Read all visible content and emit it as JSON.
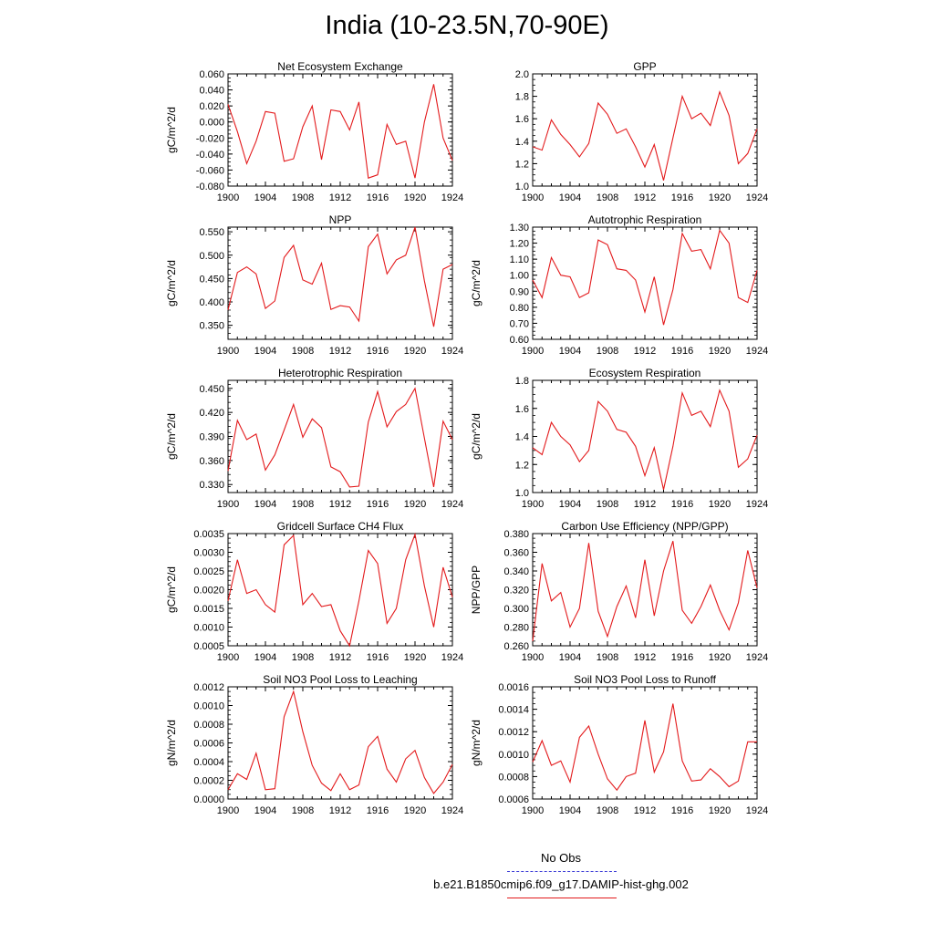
{
  "title": "India (10-23.5N,70-90E)",
  "colors": {
    "series": "#e31a1c",
    "obs": "#3b3bd6",
    "frame": "#000000"
  },
  "legend": [
    {
      "label": "No Obs",
      "style": "dashed",
      "color": "#3b3bd6"
    },
    {
      "label": "b.e21.B1850cmip6.f09_g17.DAMIP-hist-ghg.002",
      "style": "solid",
      "color": "#e31a1c"
    }
  ],
  "chart_data": [
    {
      "type": "line",
      "title": "Net Ecosystem Exchange",
      "ylabel": "gC/m^2/d",
      "xlim": [
        1900,
        1924
      ],
      "ylim": [
        -0.08,
        0.06
      ],
      "xticks": [
        "1900",
        "1904",
        "1908",
        "1912",
        "1916",
        "1920",
        "1924"
      ],
      "yticks": [
        "0.060",
        "0.040",
        "0.020",
        "0.000",
        "-0.020",
        "-0.040",
        "-0.060",
        "-0.080"
      ],
      "x": [
        1900,
        1901,
        1902,
        1903,
        1904,
        1905,
        1906,
        1907,
        1908,
        1909,
        1910,
        1911,
        1912,
        1913,
        1914,
        1915,
        1916,
        1917,
        1918,
        1919,
        1920,
        1921,
        1922,
        1923,
        1924
      ],
      "series": [
        {
          "values": [
            0.022,
            -0.012,
            -0.052,
            -0.024,
            0.013,
            0.011,
            -0.049,
            -0.046,
            -0.006,
            0.02,
            -0.047,
            0.015,
            0.013,
            -0.01,
            0.025,
            -0.07,
            -0.066,
            -0.003,
            -0.028,
            -0.024,
            -0.07,
            0.0,
            0.047,
            -0.02,
            -0.048
          ]
        }
      ]
    },
    {
      "type": "line",
      "title": "GPP",
      "ylabel": "",
      "xlim": [
        1900,
        1924
      ],
      "ylim": [
        1.0,
        2.0
      ],
      "xticks": [
        "1900",
        "1904",
        "1908",
        "1912",
        "1916",
        "1920",
        "1924"
      ],
      "yticks": [
        "2.0",
        "1.8",
        "1.6",
        "1.4",
        "1.2",
        "1.0"
      ],
      "x": [
        1900,
        1901,
        1902,
        1903,
        1904,
        1905,
        1906,
        1907,
        1908,
        1909,
        1910,
        1911,
        1912,
        1913,
        1914,
        1915,
        1916,
        1917,
        1918,
        1919,
        1920,
        1921,
        1922,
        1923,
        1924
      ],
      "series": [
        {
          "values": [
            1.35,
            1.32,
            1.59,
            1.46,
            1.37,
            1.26,
            1.38,
            1.74,
            1.64,
            1.47,
            1.51,
            1.35,
            1.17,
            1.37,
            1.05,
            1.43,
            1.8,
            1.6,
            1.65,
            1.54,
            1.84,
            1.63,
            1.2,
            1.29,
            1.51
          ]
        }
      ]
    },
    {
      "type": "line",
      "title": "NPP",
      "ylabel": "gC/m^2/d",
      "xlim": [
        1900,
        1924
      ],
      "ylim": [
        0.32,
        0.56
      ],
      "xticks": [
        "1900",
        "1904",
        "1908",
        "1912",
        "1916",
        "1920",
        "1924"
      ],
      "yticks": [
        "0.550",
        "0.500",
        "0.450",
        "0.400",
        "0.350"
      ],
      "x": [
        1900,
        1901,
        1902,
        1903,
        1904,
        1905,
        1906,
        1907,
        1908,
        1909,
        1910,
        1911,
        1912,
        1913,
        1914,
        1915,
        1916,
        1917,
        1918,
        1919,
        1920,
        1921,
        1922,
        1923,
        1924
      ],
      "series": [
        {
          "values": [
            0.383,
            0.463,
            0.475,
            0.46,
            0.386,
            0.402,
            0.495,
            0.521,
            0.447,
            0.438,
            0.483,
            0.384,
            0.392,
            0.389,
            0.359,
            0.518,
            0.545,
            0.46,
            0.49,
            0.5,
            0.56,
            0.445,
            0.347,
            0.47,
            0.48
          ]
        }
      ]
    },
    {
      "type": "line",
      "title": "Autotrophic Respiration",
      "ylabel": "gC/m^2/d",
      "xlim": [
        1900,
        1924
      ],
      "ylim": [
        0.6,
        1.3
      ],
      "xticks": [
        "1900",
        "1904",
        "1908",
        "1912",
        "1916",
        "1920",
        "1924"
      ],
      "yticks": [
        "1.30",
        "1.20",
        "1.10",
        "1.00",
        "0.90",
        "0.80",
        "0.70",
        "0.60"
      ],
      "x": [
        1900,
        1901,
        1902,
        1903,
        1904,
        1905,
        1906,
        1907,
        1908,
        1909,
        1910,
        1911,
        1912,
        1913,
        1914,
        1915,
        1916,
        1917,
        1918,
        1919,
        1920,
        1921,
        1922,
        1923,
        1924
      ],
      "series": [
        {
          "values": [
            0.97,
            0.86,
            1.11,
            1.0,
            0.99,
            0.86,
            0.89,
            1.22,
            1.19,
            1.04,
            1.03,
            0.97,
            0.77,
            0.99,
            0.69,
            0.91,
            1.26,
            1.15,
            1.16,
            1.04,
            1.28,
            1.2,
            0.86,
            0.83,
            1.03
          ]
        }
      ]
    },
    {
      "type": "line",
      "title": "Heterotrophic Respiration",
      "ylabel": "gC/m^2/d",
      "xlim": [
        1900,
        1924
      ],
      "ylim": [
        0.32,
        0.46
      ],
      "xticks": [
        "1900",
        "1904",
        "1908",
        "1912",
        "1916",
        "1920",
        "1924"
      ],
      "yticks": [
        "0.450",
        "0.420",
        "0.390",
        "0.360",
        "0.330"
      ],
      "x": [
        1900,
        1901,
        1902,
        1903,
        1904,
        1905,
        1906,
        1907,
        1908,
        1909,
        1910,
        1911,
        1912,
        1913,
        1914,
        1915,
        1916,
        1917,
        1918,
        1919,
        1920,
        1921,
        1922,
        1923,
        1924
      ],
      "series": [
        {
          "values": [
            0.347,
            0.41,
            0.386,
            0.393,
            0.348,
            0.367,
            0.398,
            0.43,
            0.389,
            0.412,
            0.401,
            0.352,
            0.346,
            0.327,
            0.328,
            0.408,
            0.446,
            0.402,
            0.421,
            0.43,
            0.45,
            0.388,
            0.327,
            0.409,
            0.386
          ]
        }
      ]
    },
    {
      "type": "line",
      "title": "Ecosystem Respiration",
      "ylabel": "gC/m^2/d",
      "xlim": [
        1900,
        1924
      ],
      "ylim": [
        1.0,
        1.8
      ],
      "xticks": [
        "1900",
        "1904",
        "1908",
        "1912",
        "1916",
        "1920",
        "1924"
      ],
      "yticks": [
        "1.8",
        "1.6",
        "1.4",
        "1.2",
        "1.0"
      ],
      "x": [
        1900,
        1901,
        1902,
        1903,
        1904,
        1905,
        1906,
        1907,
        1908,
        1909,
        1910,
        1911,
        1912,
        1913,
        1914,
        1915,
        1916,
        1917,
        1918,
        1919,
        1920,
        1921,
        1922,
        1923,
        1924
      ],
      "series": [
        {
          "values": [
            1.32,
            1.27,
            1.5,
            1.4,
            1.34,
            1.22,
            1.3,
            1.65,
            1.58,
            1.45,
            1.43,
            1.33,
            1.12,
            1.32,
            1.02,
            1.33,
            1.71,
            1.55,
            1.58,
            1.47,
            1.73,
            1.58,
            1.18,
            1.24,
            1.41
          ]
        }
      ]
    },
    {
      "type": "line",
      "title": "Gridcell Surface CH4 Flux",
      "ylabel": "gC/m^2/d",
      "xlim": [
        1900,
        1924
      ],
      "ylim": [
        0.0005,
        0.0035
      ],
      "xticks": [
        "1900",
        "1904",
        "1908",
        "1912",
        "1916",
        "1920",
        "1924"
      ],
      "yticks": [
        "0.0035",
        "0.0030",
        "0.0025",
        "0.0020",
        "0.0015",
        "0.0010",
        "0.0005"
      ],
      "x": [
        1900,
        1901,
        1902,
        1903,
        1904,
        1905,
        1906,
        1907,
        1908,
        1909,
        1910,
        1911,
        1912,
        1913,
        1914,
        1915,
        1916,
        1917,
        1918,
        1919,
        1920,
        1921,
        1922,
        1923,
        1924
      ],
      "series": [
        {
          "values": [
            0.0017,
            0.0028,
            0.0019,
            0.002,
            0.0016,
            0.0014,
            0.0032,
            0.00345,
            0.0016,
            0.0019,
            0.00155,
            0.0016,
            0.0009,
            0.0005,
            0.0017,
            0.00305,
            0.0027,
            0.0011,
            0.0015,
            0.0028,
            0.00348,
            0.0021,
            0.001,
            0.0026,
            0.0018
          ]
        }
      ]
    },
    {
      "type": "line",
      "title": "Carbon Use Efficiency (NPP/GPP)",
      "ylabel": "NPP/GPP",
      "xlim": [
        1900,
        1924
      ],
      "ylim": [
        0.26,
        0.38
      ],
      "xticks": [
        "1900",
        "1904",
        "1908",
        "1912",
        "1916",
        "1920",
        "1924"
      ],
      "yticks": [
        "0.380",
        "0.360",
        "0.340",
        "0.320",
        "0.300",
        "0.280",
        "0.260"
      ],
      "x": [
        1900,
        1901,
        1902,
        1903,
        1904,
        1905,
        1906,
        1907,
        1908,
        1909,
        1910,
        1911,
        1912,
        1913,
        1914,
        1915,
        1916,
        1917,
        1918,
        1919,
        1920,
        1921,
        1922,
        1923,
        1924
      ],
      "series": [
        {
          "values": [
            0.265,
            0.348,
            0.308,
            0.317,
            0.28,
            0.3,
            0.37,
            0.297,
            0.27,
            0.302,
            0.324,
            0.29,
            0.352,
            0.292,
            0.34,
            0.372,
            0.298,
            0.284,
            0.302,
            0.325,
            0.298,
            0.277,
            0.306,
            0.362,
            0.322
          ]
        }
      ]
    },
    {
      "type": "line",
      "title": "Soil NO3 Pool Loss to Leaching",
      "ylabel": "gN/m^2/d",
      "xlim": [
        1900,
        1924
      ],
      "ylim": [
        0.0,
        0.0012
      ],
      "xticks": [
        "1900",
        "1904",
        "1908",
        "1912",
        "1916",
        "1920",
        "1924"
      ],
      "yticks": [
        "0.0012",
        "0.0010",
        "0.0008",
        "0.0006",
        "0.0004",
        "0.0002",
        "0.0000"
      ],
      "x": [
        1900,
        1901,
        1902,
        1903,
        1904,
        1905,
        1906,
        1907,
        1908,
        1909,
        1910,
        1911,
        1912,
        1913,
        1914,
        1915,
        1916,
        1917,
        1918,
        1919,
        1920,
        1921,
        1922,
        1923,
        1924
      ],
      "series": [
        {
          "values": [
            0.0001,
            0.00027,
            0.00021,
            0.00049,
            0.0001,
            0.00011,
            0.00088,
            0.00115,
            0.00072,
            0.00036,
            0.00017,
            9e-05,
            0.00027,
            0.0001,
            0.00015,
            0.00056,
            0.00067,
            0.00032,
            0.00018,
            0.00043,
            0.00052,
            0.00023,
            6e-05,
            0.00018,
            0.00037
          ]
        }
      ]
    },
    {
      "type": "line",
      "title": "Soil NO3 Pool Loss to Runoff",
      "ylabel": "gN/m^2/d",
      "xlim": [
        1900,
        1924
      ],
      "ylim": [
        0.0006,
        0.0016
      ],
      "xticks": [
        "1900",
        "1904",
        "1908",
        "1912",
        "1916",
        "1920",
        "1924"
      ],
      "yticks": [
        "0.0016",
        "0.0014",
        "0.0012",
        "0.0010",
        "0.0008",
        "0.0006"
      ],
      "x": [
        1900,
        1901,
        1902,
        1903,
        1904,
        1905,
        1906,
        1907,
        1908,
        1909,
        1910,
        1911,
        1912,
        1913,
        1914,
        1915,
        1916,
        1917,
        1918,
        1919,
        1920,
        1921,
        1922,
        1923,
        1924
      ],
      "series": [
        {
          "values": [
            0.00093,
            0.00112,
            0.0009,
            0.00094,
            0.00075,
            0.00115,
            0.00125,
            0.001,
            0.00078,
            0.00068,
            0.0008,
            0.00083,
            0.0013,
            0.00084,
            0.00102,
            0.00145,
            0.00094,
            0.00076,
            0.00077,
            0.00087,
            0.0008,
            0.00071,
            0.00076,
            0.00111,
            0.00111
          ]
        }
      ]
    }
  ]
}
